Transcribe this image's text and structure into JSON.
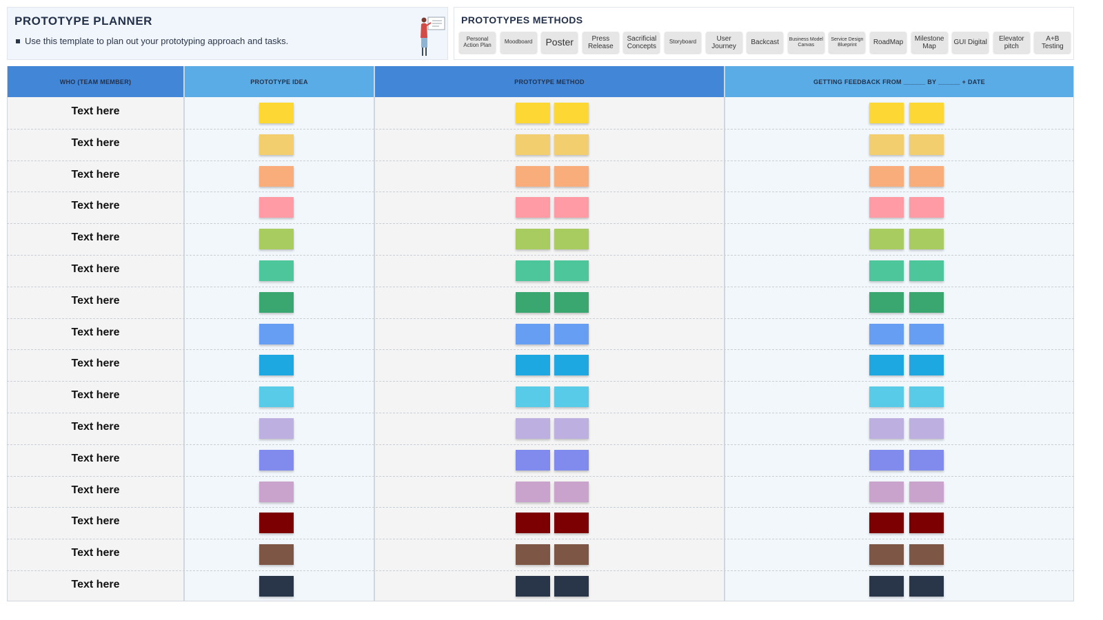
{
  "planner": {
    "title": "PROTOTYPE PLANNER",
    "description": "Use this template to plan out your prototyping approach and tasks."
  },
  "methods": {
    "title": "PROTOTYPES METHODS",
    "items": [
      {
        "label": "Personal Action Plan",
        "size": "sm"
      },
      {
        "label": "Moodboard",
        "size": "sm"
      },
      {
        "label": "Poster",
        "size": "lg"
      },
      {
        "label": "Press Release",
        "size": "md"
      },
      {
        "label": "Sacrificial Concepts",
        "size": "md"
      },
      {
        "label": "Storyboard",
        "size": "sm"
      },
      {
        "label": "User Journey",
        "size": "md"
      },
      {
        "label": "Backcast",
        "size": "md"
      },
      {
        "label": "Business Model Canvas",
        "size": "xs"
      },
      {
        "label": "Service Design Blueprint",
        "size": "xs"
      },
      {
        "label": "RoadMap",
        "size": "md"
      },
      {
        "label": "Milestone Map",
        "size": "md"
      },
      {
        "label": "GUI Digital",
        "size": "md"
      },
      {
        "label": "Elevator pitch",
        "size": "md"
      },
      {
        "label": "A+B Testing",
        "size": "md"
      }
    ]
  },
  "table": {
    "headers": {
      "who": "WHO (TEAM MEMBER)",
      "idea": "PROTOTYPE IDEA",
      "method": "PROTOTYPE METHOD",
      "feedback": "GETTING FEEDBACK FROM ______ BY ______ + DATE"
    },
    "rows": [
      {
        "member": "Text here",
        "color": "#FDD835"
      },
      {
        "member": "Text here",
        "color": "#F3CE6E"
      },
      {
        "member": "Text here",
        "color": "#F9AD7A"
      },
      {
        "member": "Text here",
        "color": "#FF9BA4"
      },
      {
        "member": "Text here",
        "color": "#A8CC60"
      },
      {
        "member": "Text here",
        "color": "#4CC69A"
      },
      {
        "member": "Text here",
        "color": "#3AA771"
      },
      {
        "member": "Text here",
        "color": "#659EF2"
      },
      {
        "member": "Text here",
        "color": "#1EA8E1"
      },
      {
        "member": "Text here",
        "color": "#58CBE8"
      },
      {
        "member": "Text here",
        "color": "#BDB0E0"
      },
      {
        "member": "Text here",
        "color": "#818BEE"
      },
      {
        "member": "Text here",
        "color": "#C9A3CC"
      },
      {
        "member": "Text here",
        "color": "#7C0002"
      },
      {
        "member": "Text here",
        "color": "#7D5646"
      },
      {
        "member": "Text here",
        "color": "#293548"
      }
    ]
  }
}
